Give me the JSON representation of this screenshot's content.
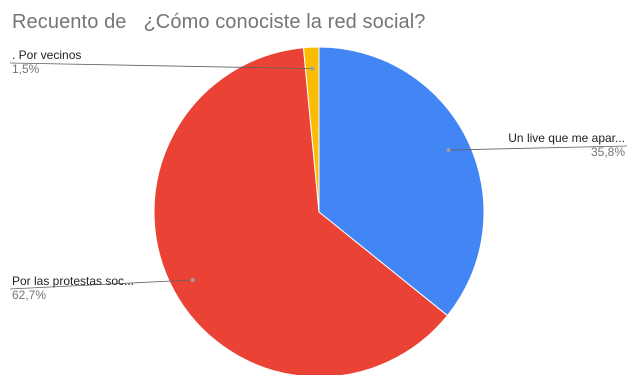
{
  "chart_data": {
    "type": "pie",
    "title": "Recuento de   ¿Cómo conociste la red social?",
    "start_angle_deg": 0,
    "direction": "clockwise",
    "slices": [
      {
        "label": "Un live que me apar...",
        "value": 35.8,
        "value_label": "35,8%",
        "color": "#4285f4"
      },
      {
        "label": "Por las protestas soc...",
        "value": 62.7,
        "value_label": "62,7%",
        "color": "#ea4335"
      },
      {
        "label": ". Por vecinos",
        "value": 1.5,
        "value_label": "1,5%",
        "color": "#fbbc04"
      }
    ],
    "legend": "none",
    "label_style": "callouts"
  }
}
